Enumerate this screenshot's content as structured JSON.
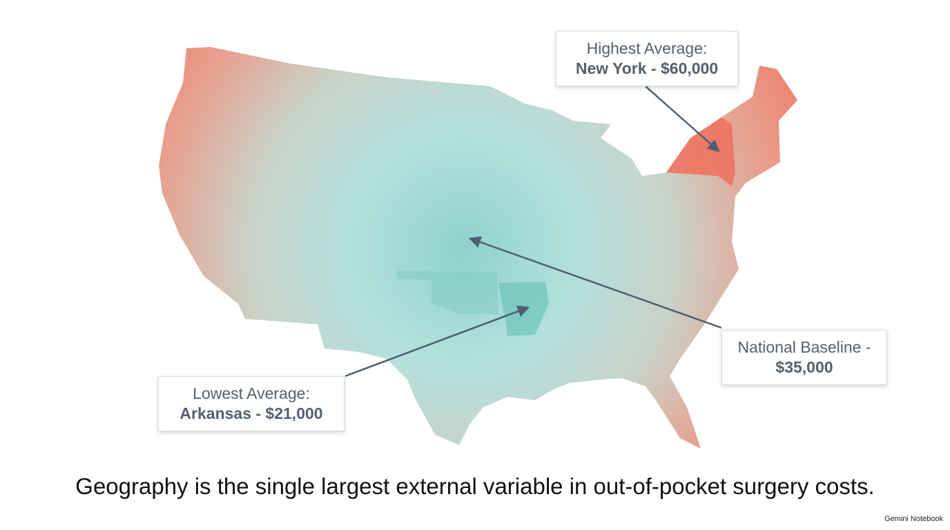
{
  "callouts": [
    {
      "line1": "Highest Average:",
      "line2": "New York - $60,000"
    },
    {
      "line1": "National Baseline -",
      "line2": "$35,000"
    },
    {
      "line1": "Lowest Average:",
      "line2": "Arkansas - $21,000"
    }
  ],
  "caption": "Geography is the single largest external variable in out-of-pocket surgery costs.",
  "watermark": "Gemini Notebook"
}
